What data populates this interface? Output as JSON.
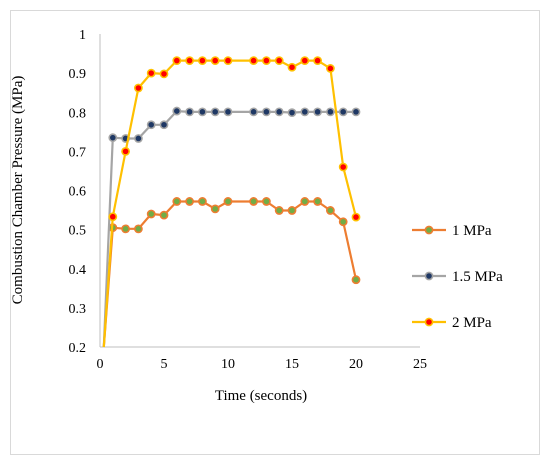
{
  "chart_data": {
    "type": "line",
    "title": "",
    "xlabel": "Time (seconds)",
    "ylabel": "Combustion Chamber Pressure (MPa)",
    "xlim": [
      0,
      25
    ],
    "ylim": [
      0.2,
      1.0
    ],
    "x_ticks": [
      "0",
      "5",
      "10",
      "15",
      "20",
      "25"
    ],
    "y_ticks": [
      "0.2",
      "0.3",
      "0.4",
      "0.5",
      "0.6",
      "0.7",
      "0.8",
      "0.9",
      "1"
    ],
    "grid": false,
    "legend_position": "right",
    "series": [
      {
        "name": "1 MPa",
        "line_color": "#ed7d31",
        "marker_color": "#70ad47",
        "start": [
          0.3,
          0.2
        ],
        "points": [
          [
            1,
            0.505
          ],
          [
            2,
            0.502
          ],
          [
            3,
            0.502
          ],
          [
            4,
            0.54
          ],
          [
            5,
            0.537
          ],
          [
            6,
            0.572
          ],
          [
            7,
            0.572
          ],
          [
            8,
            0.572
          ],
          [
            9,
            0.553
          ],
          [
            10,
            0.572
          ],
          [
            12,
            0.572
          ],
          [
            13,
            0.572
          ],
          [
            14,
            0.549
          ],
          [
            15,
            0.549
          ],
          [
            16,
            0.572
          ],
          [
            17,
            0.572
          ],
          [
            18,
            0.549
          ],
          [
            19,
            0.52
          ],
          [
            20,
            0.372
          ]
        ]
      },
      {
        "name": "1.5 MPa",
        "line_color": "#a5a5a5",
        "marker_color": "#1f3864",
        "start": [
          0.3,
          0.2
        ],
        "points": [
          [
            1,
            0.735
          ],
          [
            2,
            0.733
          ],
          [
            3,
            0.733
          ],
          [
            4,
            0.768
          ],
          [
            5,
            0.768
          ],
          [
            6,
            0.803
          ],
          [
            7,
            0.801
          ],
          [
            8,
            0.801
          ],
          [
            9,
            0.801
          ],
          [
            10,
            0.801
          ],
          [
            12,
            0.801
          ],
          [
            13,
            0.801
          ],
          [
            14,
            0.801
          ],
          [
            15,
            0.799
          ],
          [
            16,
            0.801
          ],
          [
            17,
            0.801
          ],
          [
            18,
            0.801
          ],
          [
            19,
            0.801
          ],
          [
            20,
            0.801
          ]
        ]
      },
      {
        "name": "2 MPa",
        "line_color": "#ffc000",
        "marker_color": "#ff0000",
        "start": [
          0.3,
          0.2
        ],
        "points": [
          [
            1,
            0.533
          ],
          [
            2,
            0.7
          ],
          [
            3,
            0.862
          ],
          [
            4,
            0.9
          ],
          [
            5,
            0.898
          ],
          [
            6,
            0.932
          ],
          [
            7,
            0.932
          ],
          [
            8,
            0.932
          ],
          [
            9,
            0.932
          ],
          [
            10,
            0.932
          ],
          [
            12,
            0.932
          ],
          [
            13,
            0.932
          ],
          [
            14,
            0.932
          ],
          [
            15,
            0.915
          ],
          [
            16,
            0.932
          ],
          [
            17,
            0.932
          ],
          [
            18,
            0.912
          ],
          [
            19,
            0.66
          ],
          [
            20,
            0.532
          ]
        ]
      }
    ]
  }
}
